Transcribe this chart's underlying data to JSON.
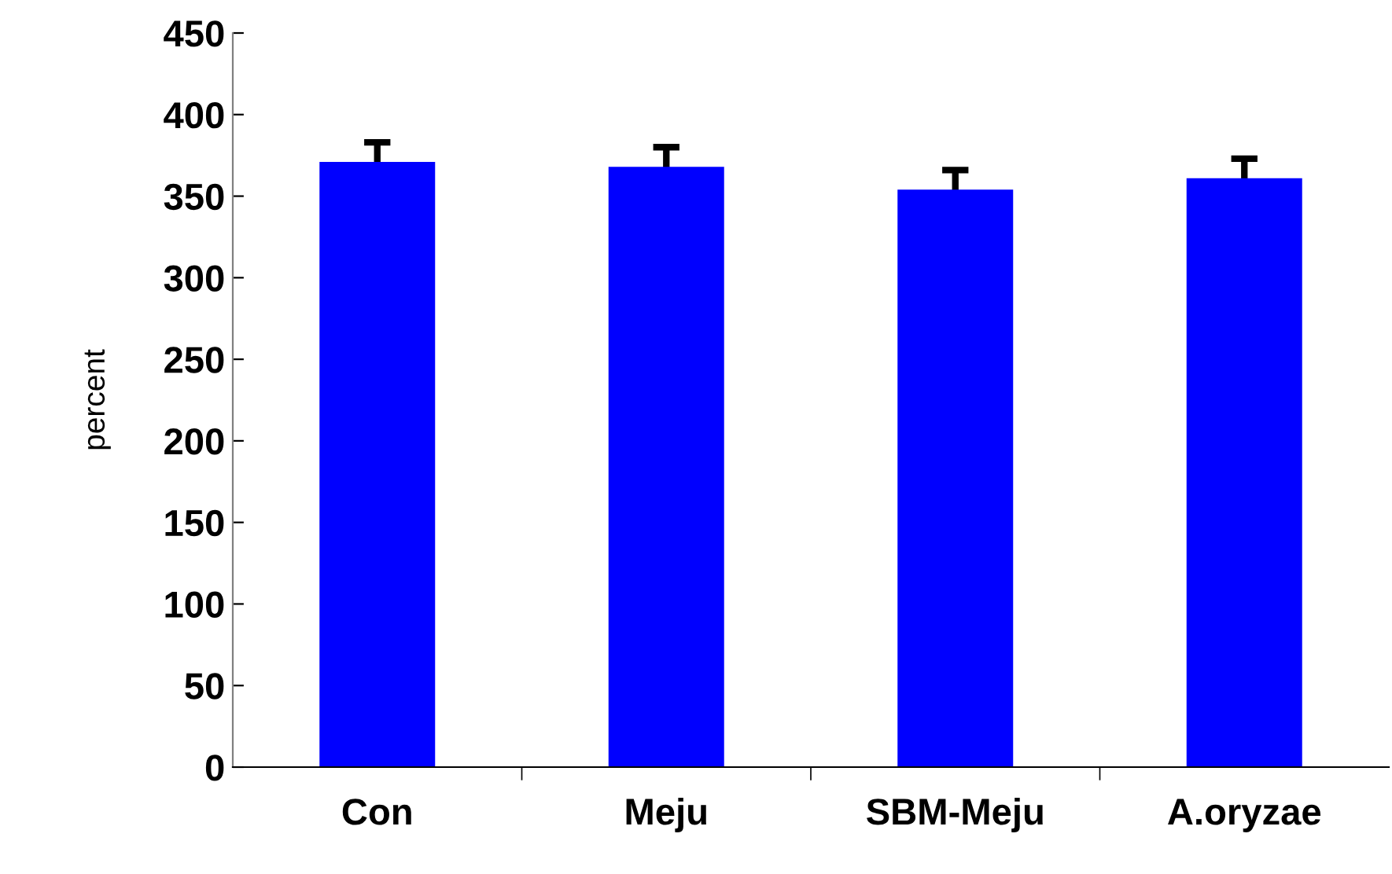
{
  "chart_data": {
    "type": "bar",
    "ylabel": "percent",
    "categories": [
      "Con",
      "Meju",
      "SBM-Meju",
      "A.oryzae"
    ],
    "values": [
      371,
      368,
      354,
      361
    ],
    "errors": [
      12,
      12,
      12,
      12
    ],
    "color": "#0000ff",
    "ylim": [
      0,
      450
    ],
    "yticks": [
      0,
      50,
      100,
      150,
      200,
      250,
      300,
      350,
      400,
      450
    ],
    "grid": false
  }
}
